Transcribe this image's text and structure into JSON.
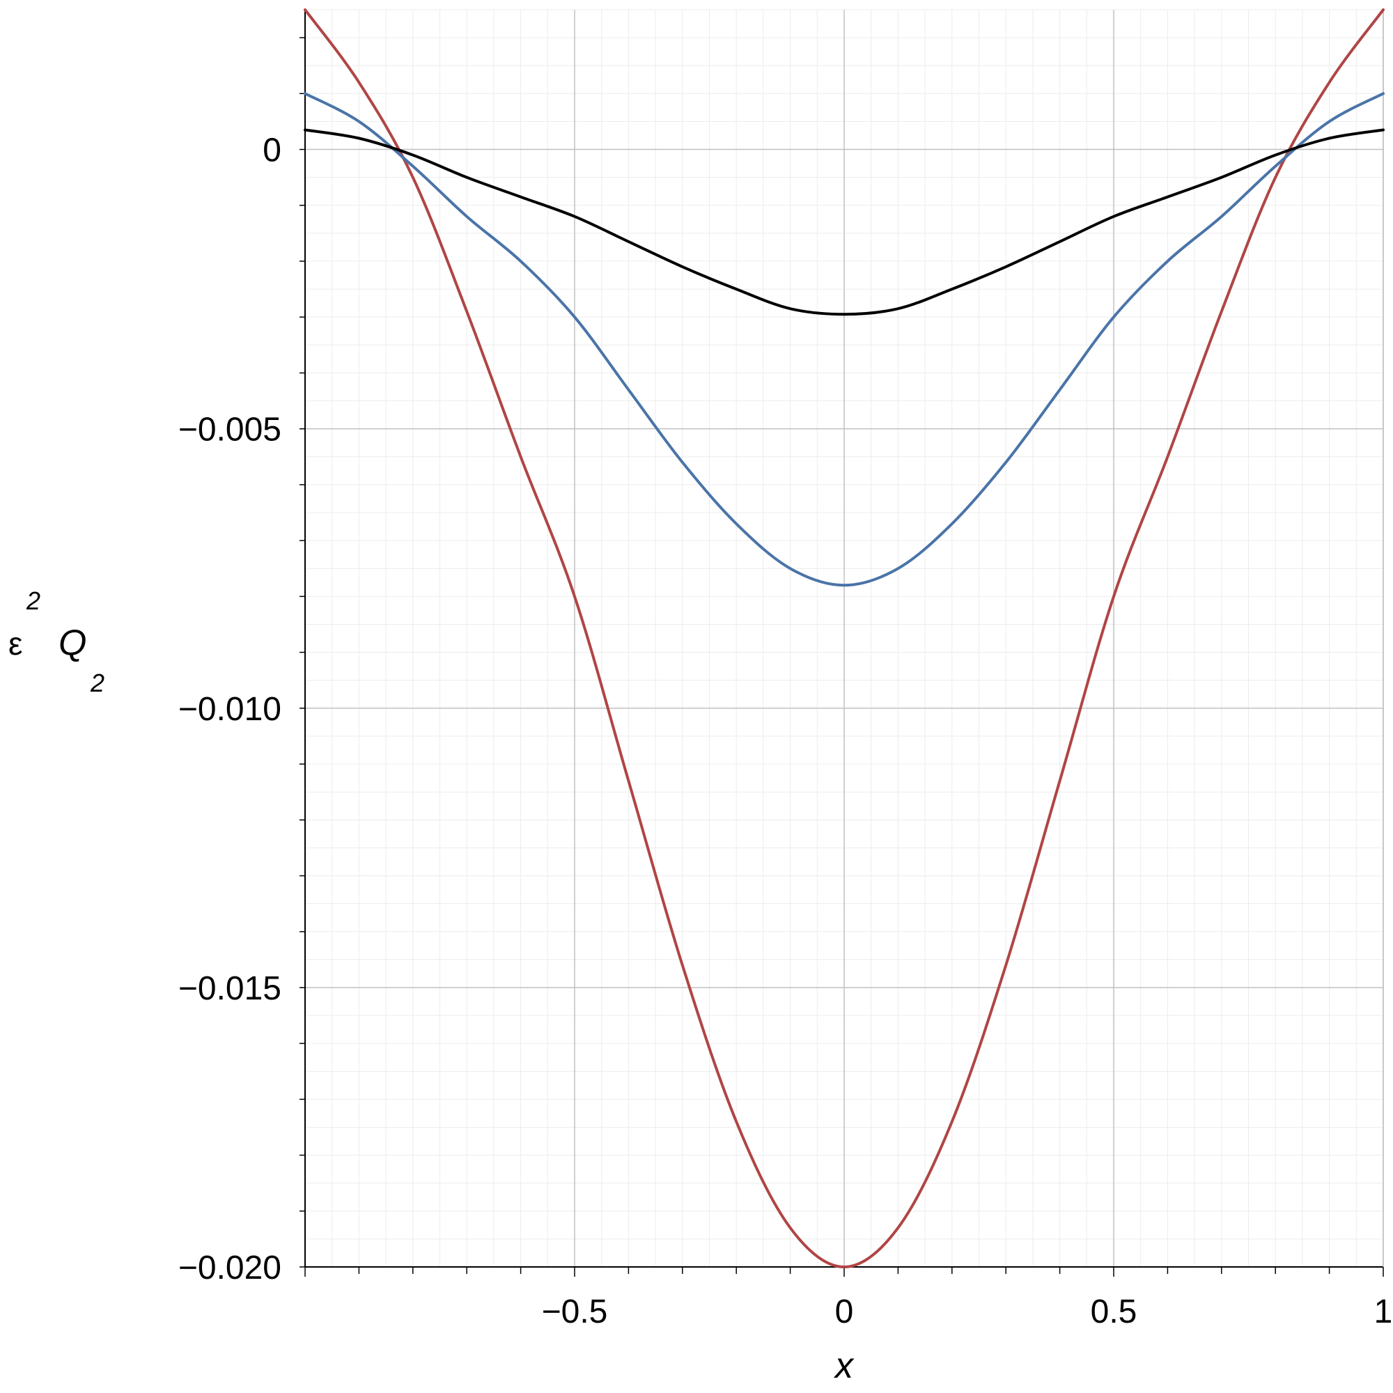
{
  "chart_data": {
    "type": "line",
    "xlabel": "x",
    "ylabel": {
      "base": "ε",
      "superscript": "2",
      "symbol": "Q",
      "subscript": "2"
    },
    "xlim": [
      -1,
      1
    ],
    "ylim": [
      -0.02,
      0.0025
    ],
    "x_ticks": [
      {
        "value": -0.5,
        "label": "−0.5"
      },
      {
        "value": 0,
        "label": "0"
      },
      {
        "value": 0.5,
        "label": "0.5"
      },
      {
        "value": 1,
        "label": "1"
      }
    ],
    "y_ticks": [
      {
        "value": 0,
        "label": "0"
      },
      {
        "value": -0.005,
        "label": "−0.005"
      },
      {
        "value": -0.01,
        "label": "−0.010"
      },
      {
        "value": -0.015,
        "label": "−0.015"
      },
      {
        "value": -0.02,
        "label": "−0.020"
      }
    ],
    "grid": true,
    "series": [
      {
        "color": "#b04545",
        "x": [
          -1.0,
          -0.9,
          -0.8,
          -0.7,
          -0.6,
          -0.5,
          -0.4,
          -0.3,
          -0.2,
          -0.1,
          0.0,
          0.1,
          0.2,
          0.3,
          0.4,
          0.5,
          0.6,
          0.7,
          0.8,
          0.9,
          1.0
        ],
        "y": [
          0.0025,
          0.0012,
          -0.0005,
          -0.0029,
          -0.0055,
          -0.008,
          -0.0113,
          -0.0146,
          -0.0174,
          -0.0193,
          -0.02,
          -0.0193,
          -0.0174,
          -0.0146,
          -0.0113,
          -0.008,
          -0.0055,
          -0.0029,
          -0.0005,
          0.0012,
          0.0025
        ]
      },
      {
        "color": "#4a74a8",
        "x": [
          -1.0,
          -0.9,
          -0.8,
          -0.7,
          -0.6,
          -0.5,
          -0.4,
          -0.3,
          -0.2,
          -0.1,
          0.0,
          0.1,
          0.2,
          0.3,
          0.4,
          0.5,
          0.6,
          0.7,
          0.8,
          0.9,
          1.0
        ],
        "y": [
          0.001,
          0.0005,
          -0.0003,
          -0.0012,
          -0.002,
          -0.003,
          -0.0043,
          -0.0056,
          -0.0067,
          -0.0075,
          -0.0078,
          -0.0075,
          -0.0067,
          -0.0056,
          -0.0043,
          -0.003,
          -0.002,
          -0.0012,
          -0.0003,
          0.0005,
          0.001
        ]
      },
      {
        "color": "#000000",
        "x": [
          -1.0,
          -0.9,
          -0.8,
          -0.7,
          -0.6,
          -0.5,
          -0.4,
          -0.3,
          -0.2,
          -0.1,
          0.0,
          0.1,
          0.2,
          0.3,
          0.4,
          0.5,
          0.6,
          0.7,
          0.8,
          0.9,
          1.0
        ],
        "y": [
          0.00035,
          0.0002,
          -0.0001,
          -0.0005,
          -0.00085,
          -0.0012,
          -0.00165,
          -0.0021,
          -0.0025,
          -0.00285,
          -0.00295,
          -0.00285,
          -0.0025,
          -0.0021,
          -0.00165,
          -0.0012,
          -0.00085,
          -0.0005,
          -0.0001,
          0.0002,
          0.00035
        ]
      }
    ]
  }
}
